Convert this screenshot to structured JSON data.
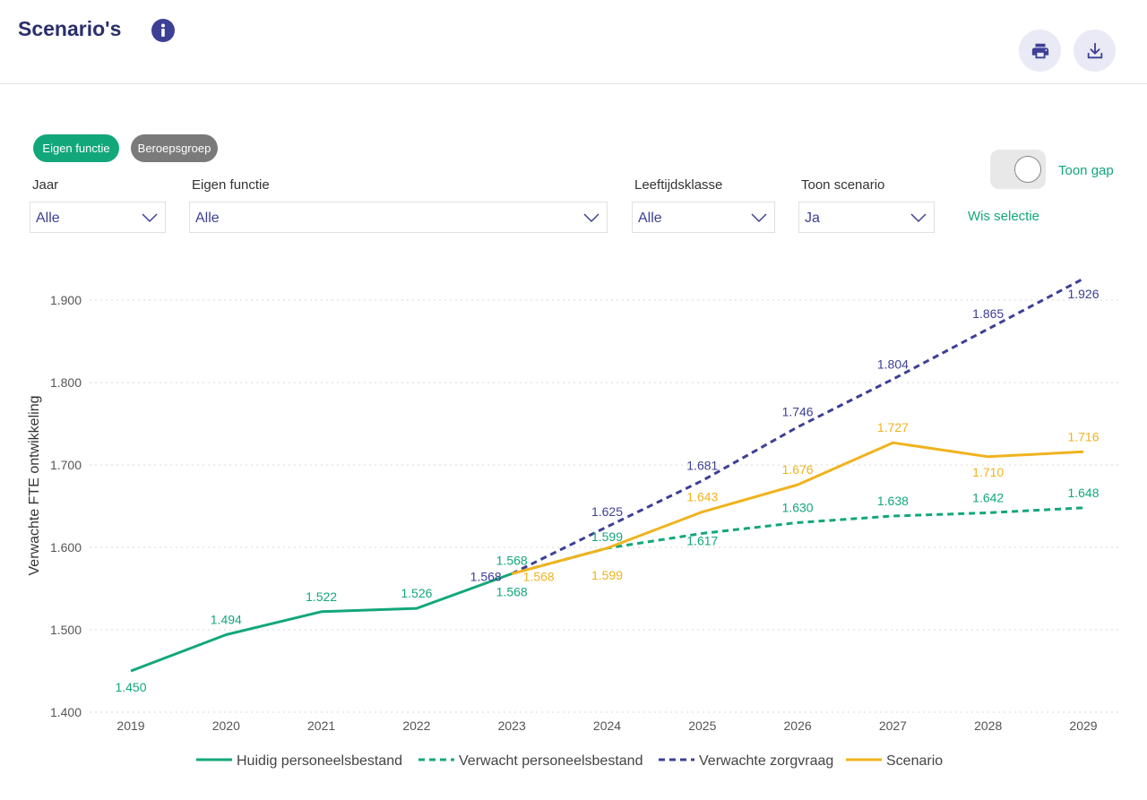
{
  "header": {
    "title": "Scenario's",
    "info_icon": "info-icon",
    "print_icon": "printer-icon",
    "download_icon": "download-icon"
  },
  "chips": {
    "eigen_functie": "Eigen functie",
    "beroepsgroep": "Beroepsgroep"
  },
  "filters": {
    "jaar": {
      "label": "Jaar",
      "value": "Alle"
    },
    "eigen_functie": {
      "label": "Eigen functie",
      "value": "Alle"
    },
    "leeftijdsklasse": {
      "label": "Leeftijdsklasse",
      "value": "Alle"
    },
    "toon_scenario": {
      "label": "Toon scenario",
      "value": "Ja"
    }
  },
  "toggle": {
    "label": "Toon gap",
    "on": false
  },
  "clear_selection": "Wis selectie",
  "colors": {
    "green": "#12a77a",
    "navy": "#3d4095",
    "yellow": "#f0b31e",
    "title": "#2b2f6b"
  },
  "chart_data": {
    "type": "line",
    "ylabel": "Verwachte FTE ontwikkeling",
    "xlabel": "",
    "ylim": [
      1.4,
      1.95
    ],
    "yticks": [
      "1.400",
      "1.500",
      "1.600",
      "1.700",
      "1.800",
      "1.900"
    ],
    "x": [
      "2019",
      "2020",
      "2021",
      "2022",
      "2023",
      "2024",
      "2025",
      "2026",
      "2027",
      "2028",
      "2029"
    ],
    "grid": "horizontal dotted",
    "legend_position": "bottom",
    "series": [
      {
        "name": "Huidig personeelsbestand",
        "style": "solid",
        "color": "#12a77a",
        "x": [
          "2019",
          "2020",
          "2021",
          "2022",
          "2023"
        ],
        "values": [
          1.45,
          1.494,
          1.522,
          1.526,
          1.568
        ],
        "labels": [
          "1.450",
          "1.494",
          "1.522",
          "1.526",
          "1.568"
        ]
      },
      {
        "name": "Verwacht personeelsbestand",
        "style": "dashed",
        "color": "#12a77a",
        "x": [
          "2023",
          "2024",
          "2025",
          "2026",
          "2027",
          "2028",
          "2029"
        ],
        "values": [
          1.568,
          1.599,
          1.617,
          1.63,
          1.638,
          1.642,
          1.648
        ],
        "labels": [
          "1.568",
          "1.599",
          "1.617",
          "1.630",
          "1.638",
          "1.642",
          "1.648"
        ]
      },
      {
        "name": "Verwachte zorgvraag",
        "style": "dashed",
        "color": "#3d4095",
        "x": [
          "2023",
          "2024",
          "2025",
          "2026",
          "2027",
          "2028",
          "2029"
        ],
        "values": [
          1.568,
          1.625,
          1.681,
          1.746,
          1.804,
          1.865,
          1.926
        ],
        "labels": [
          "1.568",
          "1.625",
          "1.681",
          "1.746",
          "1.804",
          "1.865",
          "1.926"
        ]
      },
      {
        "name": "Scenario",
        "style": "solid",
        "color": "#f0b31e",
        "x": [
          "2023",
          "2024",
          "2025",
          "2026",
          "2027",
          "2028",
          "2029"
        ],
        "values": [
          1.568,
          1.599,
          1.643,
          1.676,
          1.727,
          1.71,
          1.716
        ],
        "labels": [
          "1.568",
          "1.599",
          "1.643",
          "1.676",
          "1.727",
          "1.710",
          "1.716"
        ]
      }
    ]
  }
}
